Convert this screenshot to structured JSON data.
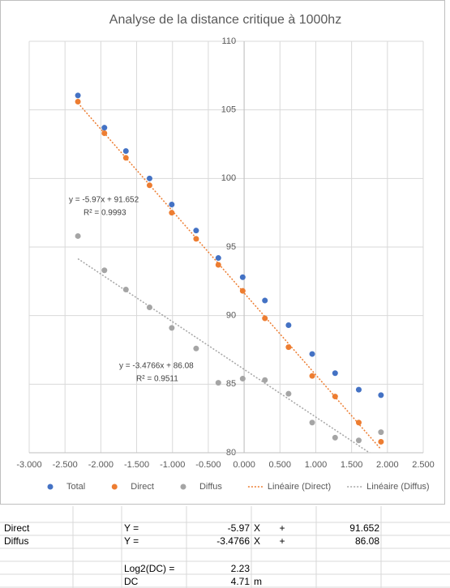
{
  "chart_data": {
    "type": "scatter",
    "title": "Analyse de la distance critique à 1000hz",
    "x": [
      -2.32,
      -1.95,
      -1.65,
      -1.32,
      -1.01,
      -0.67,
      -0.36,
      -0.02,
      0.29,
      0.62,
      0.95,
      1.27,
      1.6,
      1.91
    ],
    "series": [
      {
        "name": "Total",
        "color": "#4472c4",
        "values": [
          106.05,
          103.7,
          102.0,
          100.0,
          98.1,
          96.2,
          94.2,
          92.8,
          91.1,
          89.3,
          87.2,
          85.8,
          84.6,
          84.2
        ]
      },
      {
        "name": "Direct",
        "color": "#ed7d31",
        "values": [
          105.6,
          103.3,
          101.5,
          99.5,
          97.5,
          95.6,
          93.7,
          91.8,
          89.8,
          87.7,
          85.6,
          84.1,
          82.2,
          80.8
        ]
      },
      {
        "name": "Diffus",
        "color": "#a5a5a5",
        "values": [
          95.8,
          93.3,
          91.9,
          90.6,
          89.1,
          87.6,
          85.1,
          85.4,
          85.3,
          84.3,
          82.2,
          81.1,
          80.9,
          81.5
        ]
      }
    ],
    "trendlines": [
      {
        "name": "Linéaire (Direct)",
        "color": "#ed7d31",
        "equation": "y = -5.97x + 91.652",
        "r2": "R² = 0.9993"
      },
      {
        "name": "Linéaire (Diffus)",
        "color": "#a5a5a5",
        "equation": "y = -3.4766x + 86.08",
        "r2": "R² = 0.9511"
      }
    ],
    "xlim": [
      -3,
      2.5
    ],
    "xticks": [
      {
        "value": -3,
        "label": "-3.000"
      },
      {
        "value": -2.5,
        "label": "-2.500"
      },
      {
        "value": -2,
        "label": "-2.000"
      },
      {
        "value": -1.5,
        "label": "-1.500"
      },
      {
        "value": -1,
        "label": "-1.000"
      },
      {
        "value": -0.5,
        "label": "-0.500"
      },
      {
        "value": 0,
        "label": "0.000"
      },
      {
        "value": 0.5,
        "label": "0.500"
      },
      {
        "value": 1,
        "label": "1.000"
      },
      {
        "value": 1.5,
        "label": "1.500"
      },
      {
        "value": 2,
        "label": "2.000"
      },
      {
        "value": 2.5,
        "label": "2.500"
      }
    ],
    "ylim": [
      80,
      110
    ],
    "yticks": [
      80,
      85,
      90,
      95,
      100,
      105,
      110
    ],
    "grid": true,
    "legend": "bottom"
  },
  "table": {
    "rows": [
      {
        "label": "Direct",
        "eq": "Y =",
        "slope": -5.97,
        "x": "X",
        "plus": "+",
        "intercept": 91.652
      },
      {
        "label": "Diffus",
        "eq": "Y =",
        "slope": -3.4766,
        "x": "X",
        "plus": "+",
        "intercept": 86.08
      }
    ],
    "results": [
      {
        "label": "Log2(DC) =",
        "value": 2.23
      },
      {
        "label": "DC",
        "value": 4.71,
        "unit": "m"
      }
    ]
  }
}
